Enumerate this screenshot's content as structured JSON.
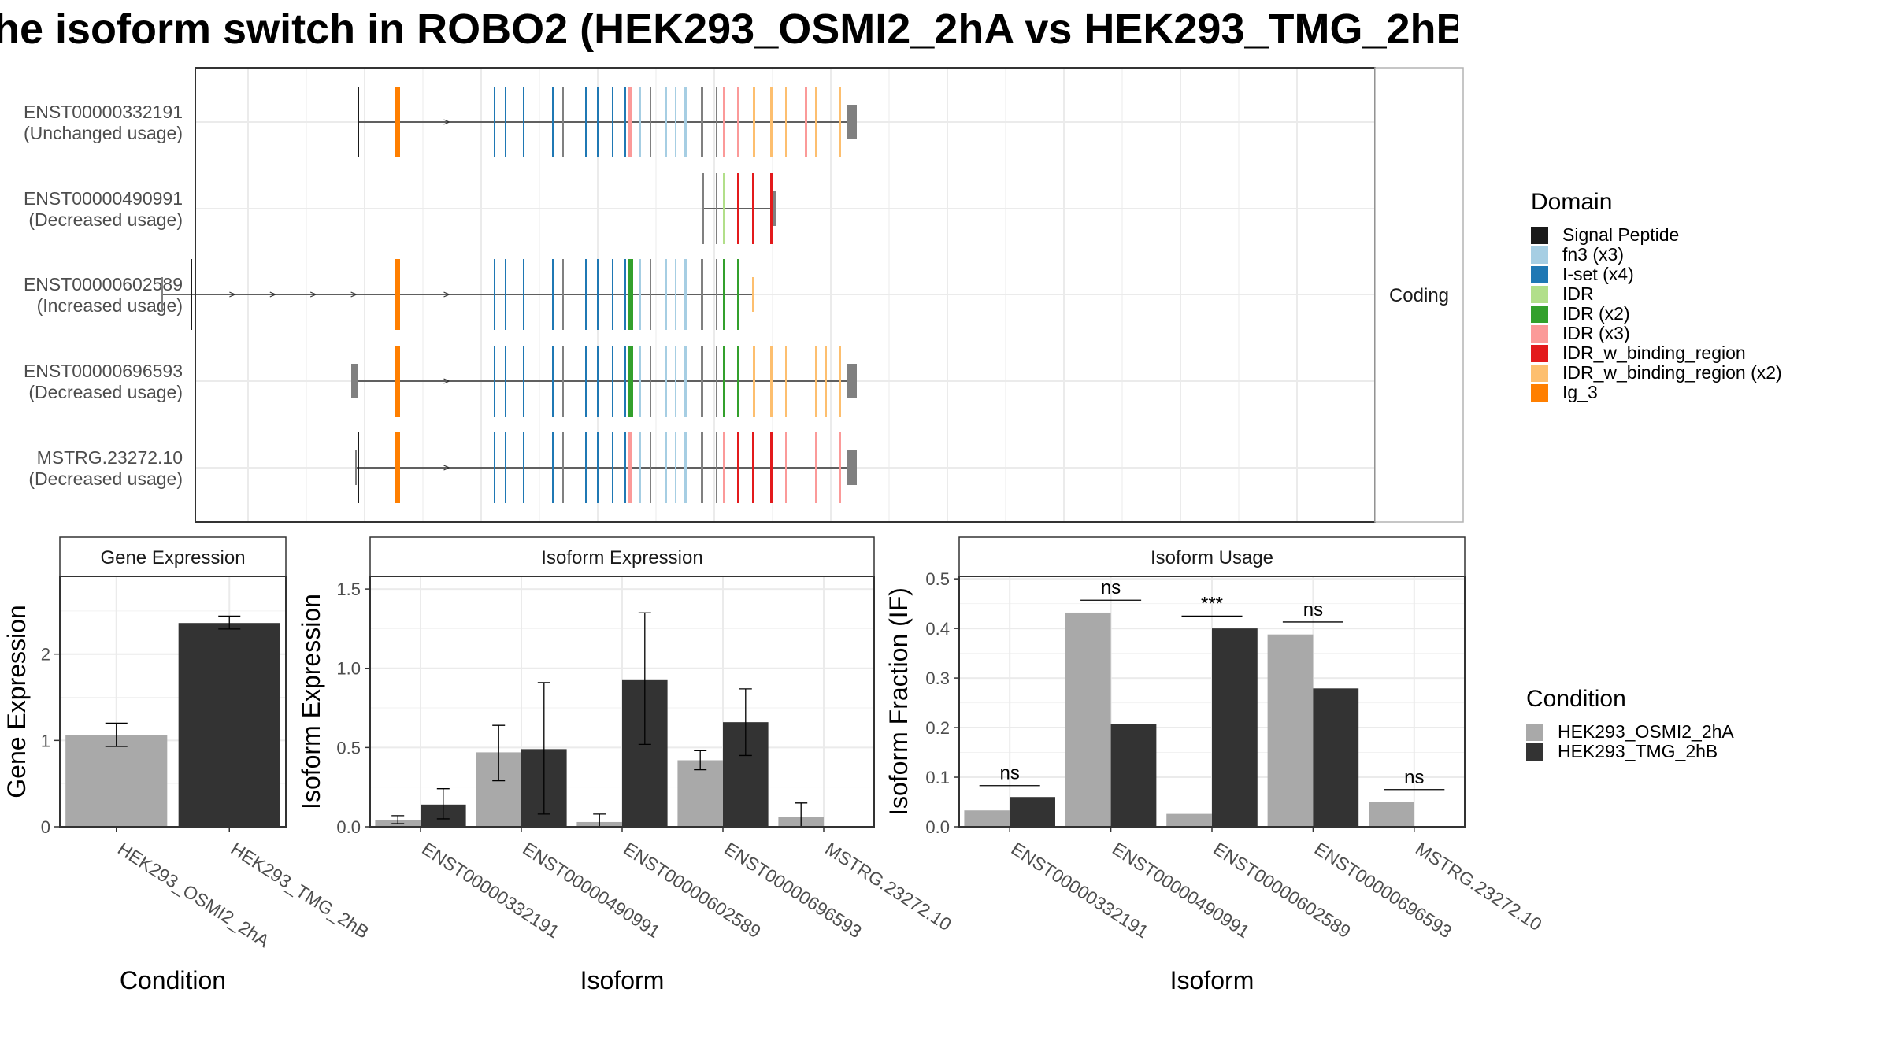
{
  "title": "he isoform switch in ROBO2 (HEK293_OSMI2_2hA vs HEK293_TMG_2hB",
  "colors": {
    "Signal Peptide": "#1a1a1a",
    "fn3 (x3)": "#a6cee3",
    "I-set (x4)": "#1f78b4",
    "IDR": "#b2df8a",
    "IDR (x2)": "#33a02c",
    "IDR (x3)": "#fb9a99",
    "IDR_w_binding_region": "#e31a1c",
    "IDR_w_binding_region (x2)": "#fdbf6f",
    "Ig_3": "#ff7f00",
    "noncoding": "#808080",
    "HEK293_OSMI2_2hA": "#a9a9a9",
    "HEK293_TMG_2hB": "#333333"
  },
  "domain_legend": {
    "title": "Domain",
    "items": [
      "Signal Peptide",
      "fn3 (x3)",
      "I-set (x4)",
      "IDR",
      "IDR (x2)",
      "IDR (x3)",
      "IDR_w_binding_region",
      "IDR_w_binding_region (x2)",
      "Ig_3"
    ]
  },
  "condition_legend": {
    "title": "Condition",
    "items": [
      "HEK293_OSMI2_2hA",
      "HEK293_TMG_2hB"
    ]
  },
  "chart_data": [
    {
      "type": "gene-structure",
      "facet_label": "Coding",
      "transcripts": [
        {
          "name": "ENST00000332191",
          "usage": "(Unchanged usage)",
          "start": 454,
          "end": 1088,
          "exons": [
            [
              454,
              455,
              "Signal Peptide",
              "t"
            ],
            [
              501,
              508,
              "Ig_3",
              "t"
            ],
            [
              627,
              629,
              "I-set (x4)",
              "t"
            ],
            [
              641,
              643,
              "I-set (x4)",
              "t"
            ],
            [
              664,
              666,
              "I-set (x4)",
              "t"
            ],
            [
              701,
              703,
              "I-set (x4)",
              "t"
            ],
            [
              714,
              715,
              "noncoding",
              "t"
            ],
            [
              743,
              745,
              "I-set (x4)",
              "t"
            ],
            [
              758,
              760,
              "I-set (x4)",
              "t"
            ],
            [
              777,
              779,
              "I-set (x4)",
              "t"
            ],
            [
              793,
              794,
              "I-set (x4)",
              "t"
            ],
            [
              798,
              803,
              "IDR (x3)",
              "t"
            ],
            [
              811,
              814,
              "fn3 (x3)",
              "t"
            ],
            [
              825,
              827,
              "noncoding",
              "t"
            ],
            [
              844,
              847,
              "fn3 (x3)",
              "t"
            ],
            [
              857,
              859,
              "fn3 (x3)",
              "t"
            ],
            [
              869,
              872,
              "fn3 (x3)",
              "t"
            ],
            [
              890,
              893,
              "noncoding",
              "t"
            ],
            [
              909,
              910,
              "noncoding",
              "t"
            ],
            [
              918,
              921,
              "IDR (x3)",
              "t"
            ],
            [
              936,
              939,
              "IDR (x3)",
              "t"
            ],
            [
              956,
              959,
              "IDR_w_binding_region (x2)",
              "t"
            ],
            [
              978,
              981,
              "IDR_w_binding_region (x2)",
              "t"
            ],
            [
              997,
              999,
              "IDR_w_binding_region (x2)",
              "t"
            ],
            [
              1022,
              1025,
              "IDR (x3)",
              "t"
            ],
            [
              1035,
              1037,
              "IDR_w_binding_region (x2)",
              "t"
            ],
            [
              1066,
              1068,
              "IDR_w_binding_region (x2)",
              "t"
            ],
            [
              1075,
              1088,
              "noncoding",
              "s"
            ]
          ]
        },
        {
          "name": "ENST00000490991",
          "usage": "(Decreased usage)",
          "start": 892,
          "end": 986,
          "exons": [
            [
              892,
              894,
              "noncoding",
              "t"
            ],
            [
              909,
              910,
              "noncoding",
              "t"
            ],
            [
              918,
              921,
              "IDR",
              "t"
            ],
            [
              936,
              939,
              "IDR_w_binding_region",
              "t"
            ],
            [
              955,
              958,
              "IDR_w_binding_region",
              "t"
            ],
            [
              978,
              981,
              "IDR_w_binding_region",
              "t"
            ],
            [
              982,
              986,
              "noncoding",
              "s"
            ]
          ]
        },
        {
          "name": "ENST00000602589",
          "usage": "(Increased usage)",
          "start": 206,
          "end": 958,
          "exons": [
            [
              205,
              207,
              "noncoding",
              "s"
            ],
            [
              242,
              244,
              "Signal Peptide",
              "t"
            ],
            [
              501,
              508,
              "Ig_3",
              "t"
            ],
            [
              627,
              629,
              "I-set (x4)",
              "t"
            ],
            [
              641,
              643,
              "I-set (x4)",
              "t"
            ],
            [
              664,
              666,
              "I-set (x4)",
              "t"
            ],
            [
              701,
              703,
              "I-set (x4)",
              "t"
            ],
            [
              714,
              715,
              "noncoding",
              "t"
            ],
            [
              743,
              745,
              "I-set (x4)",
              "t"
            ],
            [
              758,
              760,
              "I-set (x4)",
              "t"
            ],
            [
              777,
              779,
              "I-set (x4)",
              "t"
            ],
            [
              793,
              794,
              "I-set (x4)",
              "t"
            ],
            [
              798,
              804,
              "IDR (x2)",
              "t"
            ],
            [
              811,
              814,
              "fn3 (x3)",
              "t"
            ],
            [
              825,
              827,
              "noncoding",
              "t"
            ],
            [
              844,
              847,
              "fn3 (x3)",
              "t"
            ],
            [
              857,
              859,
              "fn3 (x3)",
              "t"
            ],
            [
              869,
              872,
              "fn3 (x3)",
              "t"
            ],
            [
              890,
              893,
              "noncoding",
              "t"
            ],
            [
              909,
              910,
              "noncoding",
              "t"
            ],
            [
              918,
              921,
              "IDR (x2)",
              "t"
            ],
            [
              936,
              939,
              "IDR (x2)",
              "t"
            ],
            [
              955,
              958,
              "IDR_w_binding_region (x2)",
              "s"
            ]
          ]
        },
        {
          "name": "ENST00000696593",
          "usage": "(Decreased usage)",
          "start": 446,
          "end": 1088,
          "exons": [
            [
              446,
              454,
              "noncoding",
              "s"
            ],
            [
              501,
              508,
              "Ig_3",
              "t"
            ],
            [
              627,
              629,
              "I-set (x4)",
              "t"
            ],
            [
              641,
              643,
              "I-set (x4)",
              "t"
            ],
            [
              664,
              666,
              "I-set (x4)",
              "t"
            ],
            [
              701,
              703,
              "I-set (x4)",
              "t"
            ],
            [
              714,
              715,
              "noncoding",
              "t"
            ],
            [
              743,
              745,
              "I-set (x4)",
              "t"
            ],
            [
              758,
              760,
              "I-set (x4)",
              "t"
            ],
            [
              777,
              779,
              "I-set (x4)",
              "t"
            ],
            [
              793,
              794,
              "I-set (x4)",
              "t"
            ],
            [
              798,
              804,
              "IDR (x2)",
              "t"
            ],
            [
              811,
              814,
              "fn3 (x3)",
              "t"
            ],
            [
              825,
              827,
              "noncoding",
              "t"
            ],
            [
              844,
              847,
              "fn3 (x3)",
              "t"
            ],
            [
              857,
              859,
              "fn3 (x3)",
              "t"
            ],
            [
              869,
              872,
              "fn3 (x3)",
              "t"
            ],
            [
              890,
              893,
              "noncoding",
              "t"
            ],
            [
              909,
              910,
              "noncoding",
              "t"
            ],
            [
              918,
              921,
              "IDR (x2)",
              "t"
            ],
            [
              936,
              939,
              "IDR (x2)",
              "t"
            ],
            [
              956,
              959,
              "IDR_w_binding_region (x2)",
              "t"
            ],
            [
              978,
              981,
              "IDR_w_binding_region (x2)",
              "t"
            ],
            [
              997,
              999,
              "IDR_w_binding_region (x2)",
              "t"
            ],
            [
              1035,
              1037,
              "IDR_w_binding_region (x2)",
              "t"
            ],
            [
              1048,
              1050,
              "IDR_w_binding_region (x2)",
              "t"
            ],
            [
              1066,
              1068,
              "IDR_w_binding_region (x2)",
              "t"
            ],
            [
              1075,
              1088,
              "noncoding",
              "s"
            ]
          ]
        },
        {
          "name": "MSTRG.23272.10",
          "usage": "(Decreased usage)",
          "start": 451,
          "end": 1088,
          "exons": [
            [
              451,
              453,
              "noncoding",
              "s"
            ],
            [
              454,
              455,
              "Signal Peptide",
              "t"
            ],
            [
              501,
              508,
              "Ig_3",
              "t"
            ],
            [
              627,
              629,
              "I-set (x4)",
              "t"
            ],
            [
              641,
              643,
              "I-set (x4)",
              "t"
            ],
            [
              664,
              666,
              "I-set (x4)",
              "t"
            ],
            [
              701,
              703,
              "I-set (x4)",
              "t"
            ],
            [
              714,
              715,
              "noncoding",
              "t"
            ],
            [
              743,
              745,
              "I-set (x4)",
              "t"
            ],
            [
              758,
              760,
              "I-set (x4)",
              "t"
            ],
            [
              777,
              779,
              "I-set (x4)",
              "t"
            ],
            [
              793,
              794,
              "I-set (x4)",
              "t"
            ],
            [
              798,
              803,
              "IDR (x3)",
              "t"
            ],
            [
              811,
              814,
              "fn3 (x3)",
              "t"
            ],
            [
              825,
              827,
              "noncoding",
              "t"
            ],
            [
              844,
              847,
              "fn3 (x3)",
              "t"
            ],
            [
              857,
              859,
              "fn3 (x3)",
              "t"
            ],
            [
              869,
              872,
              "fn3 (x3)",
              "t"
            ],
            [
              890,
              893,
              "noncoding",
              "t"
            ],
            [
              909,
              910,
              "noncoding",
              "t"
            ],
            [
              918,
              921,
              "IDR (x3)",
              "t"
            ],
            [
              936,
              939,
              "IDR_w_binding_region",
              "t"
            ],
            [
              955,
              958,
              "IDR_w_binding_region",
              "t"
            ],
            [
              978,
              981,
              "IDR_w_binding_region",
              "t"
            ],
            [
              997,
              999,
              "IDR (x3)",
              "t"
            ],
            [
              1035,
              1037,
              "IDR (x3)",
              "t"
            ],
            [
              1066,
              1068,
              "IDR (x3)",
              "t"
            ],
            [
              1075,
              1088,
              "noncoding",
              "s"
            ]
          ]
        }
      ]
    },
    {
      "type": "bar",
      "facet_label": "Gene Expression",
      "xlabel": "Condition",
      "ylabel": "Gene Expression",
      "ylim": [
        0,
        2.9
      ],
      "yticks": [
        0,
        1,
        2
      ],
      "categories": [
        "HEK293_OSMI2_2hA",
        "HEK293_TMG_2hB"
      ],
      "values": [
        1.06,
        2.36
      ],
      "errors": [
        [
          0.93,
          1.2
        ],
        [
          2.29,
          2.44
        ]
      ]
    },
    {
      "type": "bar",
      "facet_label": "Isoform Expression",
      "xlabel": "Isoform",
      "ylabel": "Isoform Expression",
      "ylim": [
        0,
        1.58
      ],
      "yticks": [
        0.0,
        0.5,
        1.0,
        1.5
      ],
      "tick_labels": [
        "0.0",
        "0.5",
        "1.0",
        "1.5"
      ],
      "categories": [
        "ENST00000332191",
        "ENST00000490991",
        "ENST00000602589",
        "ENST00000696593",
        "MSTRG.23272.10"
      ],
      "series": [
        {
          "name": "HEK293_OSMI2_2hA",
          "values": [
            0.04,
            0.47,
            0.03,
            0.42,
            0.06
          ],
          "errors": [
            [
              0.02,
              0.07
            ],
            [
              0.29,
              0.64
            ],
            [
              0.0,
              0.08
            ],
            [
              0.36,
              0.48
            ],
            [
              0.0,
              0.15
            ]
          ]
        },
        {
          "name": "HEK293_TMG_2hB",
          "values": [
            0.14,
            0.49,
            0.93,
            0.66,
            0.0
          ],
          "errors": [
            [
              0.05,
              0.24
            ],
            [
              0.08,
              0.91
            ],
            [
              0.52,
              1.35
            ],
            [
              0.45,
              0.87
            ],
            [
              0.0,
              0.0
            ]
          ]
        }
      ]
    },
    {
      "type": "bar",
      "facet_label": "Isoform Usage",
      "xlabel": "Isoform",
      "ylabel": "Isoform Fraction (IF)",
      "ylim": [
        0,
        0.505
      ],
      "yticks": [
        0.0,
        0.1,
        0.2,
        0.3,
        0.4,
        0.5
      ],
      "tick_labels": [
        "0.0",
        "0.1",
        "0.2",
        "0.3",
        "0.4",
        "0.5"
      ],
      "categories": [
        "ENST00000332191",
        "ENST00000490991",
        "ENST00000602589",
        "ENST00000696593",
        "MSTRG.23272.10"
      ],
      "series": [
        {
          "name": "HEK293_OSMI2_2hA",
          "values": [
            0.033,
            0.432,
            0.026,
            0.388,
            0.05
          ]
        },
        {
          "name": "HEK293_TMG_2hB",
          "values": [
            0.06,
            0.207,
            0.4,
            0.279,
            0.0
          ]
        }
      ],
      "significance": [
        {
          "label": "ns",
          "y": 0.083
        },
        {
          "label": "ns",
          "y": 0.457
        },
        {
          "label": "***",
          "y": 0.425
        },
        {
          "label": "ns",
          "y": 0.413
        },
        {
          "label": "ns",
          "y": 0.075
        }
      ]
    }
  ]
}
